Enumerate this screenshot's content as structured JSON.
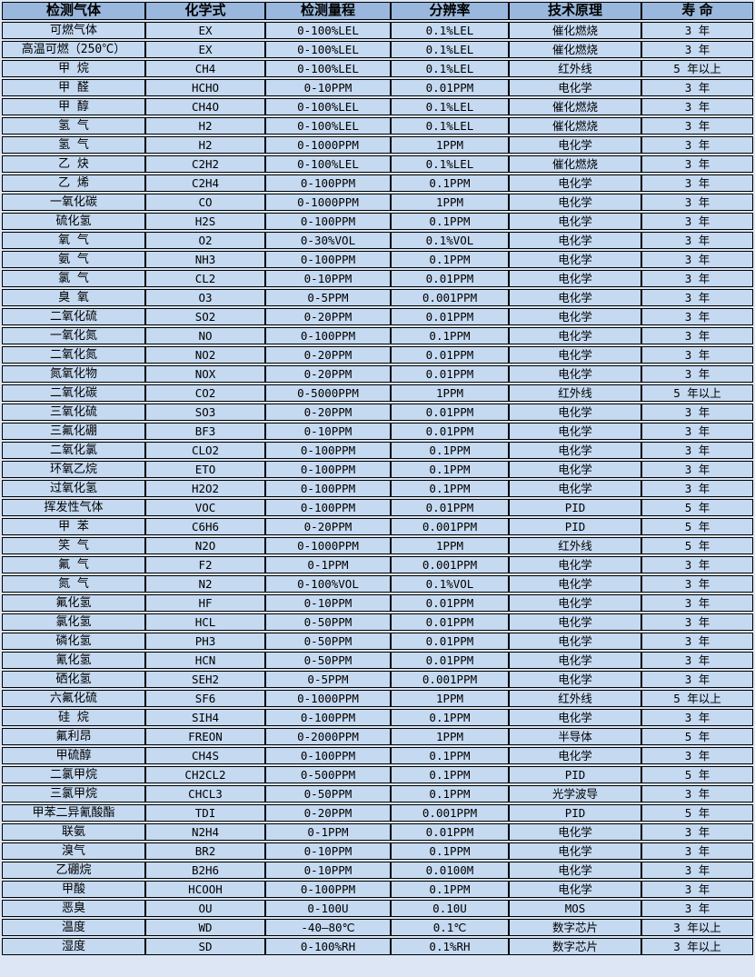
{
  "colors": {
    "header_bg": "#9ab8dd",
    "row_bg": "#c5d9f1",
    "gap_bg": "#dce6f4",
    "border": "#000000"
  },
  "chart_data": {
    "type": "table",
    "title": "",
    "columns": [
      "检测气体",
      "化学式",
      "检测量程",
      "分辨率",
      "技术原理",
      "寿 命"
    ],
    "column_keys": [
      "gas",
      "formula",
      "range",
      "resolution",
      "principle",
      "lifespan"
    ],
    "rows": [
      [
        "可燃气体",
        "EX",
        "0-100%LEL",
        "0.1%LEL",
        "催化燃烧",
        "3 年"
      ],
      [
        "高温可燃（250℃）",
        "EX",
        "0-100%LEL",
        "0.1%LEL",
        "催化燃烧",
        "3 年"
      ],
      [
        "甲 烷",
        "CH4",
        "0-100%LEL",
        "0.1%LEL",
        "红外线",
        "5 年以上"
      ],
      [
        "甲 醛",
        "HCHO",
        "0-10PPM",
        "0.01PPM",
        "电化学",
        "3 年"
      ],
      [
        "甲 醇",
        "CH4O",
        "0-100%LEL",
        "0.1%LEL",
        "催化燃烧",
        "3 年"
      ],
      [
        "氢 气",
        "H2",
        "0-100%LEL",
        "0.1%LEL",
        "催化燃烧",
        "3 年"
      ],
      [
        "氢 气",
        "H2",
        "0-1000PPM",
        "1PPM",
        "电化学",
        "3 年"
      ],
      [
        "乙 炔",
        "C2H2",
        "0-100%LEL",
        "0.1%LEL",
        "催化燃烧",
        "3 年"
      ],
      [
        "乙 烯",
        "C2H4",
        "0-100PPM",
        "0.1PPM",
        "电化学",
        "3 年"
      ],
      [
        "一氧化碳",
        "CO",
        "0-1000PPM",
        "1PPM",
        "电化学",
        "3 年"
      ],
      [
        "硫化氢",
        "H2S",
        "0-100PPM",
        "0.1PPM",
        "电化学",
        "3 年"
      ],
      [
        "氧 气",
        "O2",
        "0-30%VOL",
        "0.1%VOL",
        "电化学",
        "3 年"
      ],
      [
        "氨 气",
        "NH3",
        "0-100PPM",
        "0.1PPM",
        "电化学",
        "3 年"
      ],
      [
        "氯 气",
        "CL2",
        "0-10PPM",
        "0.01PPM",
        "电化学",
        "3 年"
      ],
      [
        "臭 氧",
        "O3",
        "0-5PPM",
        "0.001PPM",
        "电化学",
        "3 年"
      ],
      [
        "二氧化硫",
        "SO2",
        "0-20PPM",
        "0.01PPM",
        "电化学",
        "3 年"
      ],
      [
        "一氧化氮",
        "NO",
        "0-100PPM",
        "0.1PPM",
        "电化学",
        "3 年"
      ],
      [
        "二氧化氮",
        "NO2",
        "0-20PPM",
        "0.01PPM",
        "电化学",
        "3 年"
      ],
      [
        "氮氧化物",
        "NOX",
        "0-20PPM",
        "0.01PPM",
        "电化学",
        "3 年"
      ],
      [
        "二氧化碳",
        "CO2",
        "0-5000PPM",
        "1PPM",
        "红外线",
        "5 年以上"
      ],
      [
        "三氧化硫",
        "SO3",
        "0-20PPM",
        "0.01PPM",
        "电化学",
        "3 年"
      ],
      [
        "三氟化硼",
        "BF3",
        "0-10PPM",
        "0.01PPM",
        "电化学",
        "3 年"
      ],
      [
        "二氧化氯",
        "CLO2",
        "0-100PPM",
        "0.1PPM",
        "电化学",
        "3 年"
      ],
      [
        "环氧乙烷",
        "ETO",
        "0-100PPM",
        "0.1PPM",
        "电化学",
        "3 年"
      ],
      [
        "过氧化氢",
        "H2O2",
        "0-100PPM",
        "0.1PPM",
        "电化学",
        "3 年"
      ],
      [
        "挥发性气体",
        "VOC",
        "0-100PPM",
        "0.01PPM",
        "PID",
        "5 年"
      ],
      [
        "甲 苯",
        "C6H6",
        "0-20PPM",
        "0.001PPM",
        "PID",
        "5 年"
      ],
      [
        "笑 气",
        "N2O",
        "0-1000PPM",
        "1PPM",
        "红外线",
        "5 年"
      ],
      [
        "氟 气",
        "F2",
        "0-1PPM",
        "0.001PPM",
        "电化学",
        "3 年"
      ],
      [
        "氮 气",
        "N2",
        "0-100%VOL",
        "0.1%VOL",
        "电化学",
        "3 年"
      ],
      [
        "氟化氢",
        "HF",
        "0-10PPM",
        "0.01PPM",
        "电化学",
        "3 年"
      ],
      [
        "氯化氢",
        "HCL",
        "0-50PPM",
        "0.01PPM",
        "电化学",
        "3 年"
      ],
      [
        "磷化氢",
        "PH3",
        "0-50PPM",
        "0.01PPM",
        "电化学",
        "3 年"
      ],
      [
        "氰化氢",
        "HCN",
        "0-50PPM",
        "0.01PPM",
        "电化学",
        "3 年"
      ],
      [
        "硒化氢",
        "SEH2",
        "0-5PPM",
        "0.001PPM",
        "电化学",
        "3 年"
      ],
      [
        "六氟化硫",
        "SF6",
        "0-1000PPM",
        "1PPM",
        "红外线",
        "5 年以上"
      ],
      [
        "硅 烷",
        "SIH4",
        "0-100PPM",
        "0.1PPM",
        "电化学",
        "3 年"
      ],
      [
        "氟利昂",
        "FREON",
        "0-2000PPM",
        "1PPM",
        "半导体",
        "5 年"
      ],
      [
        "甲硫醇",
        "CH4S",
        "0-100PPM",
        "0.1PPM",
        "电化学",
        "3 年"
      ],
      [
        "二氯甲烷",
        "CH2CL2",
        "0-500PPM",
        "0.1PPM",
        "PID",
        "5 年"
      ],
      [
        "三氯甲烷",
        "CHCL3",
        "0-50PPM",
        "0.1PPM",
        "光学波导",
        "3 年"
      ],
      [
        "甲苯二异氰酸酯",
        "TDI",
        "0-20PPM",
        "0.001PPM",
        "PID",
        "5 年"
      ],
      [
        "联氨",
        "N2H4",
        "0-1PPM",
        "0.01PPM",
        "电化学",
        "3 年"
      ],
      [
        "溴气",
        "BR2",
        "0-10PPM",
        "0.1PPM",
        "电化学",
        "3 年"
      ],
      [
        "乙硼烷",
        "B2H6",
        "0-10PPM",
        "0.0100M",
        "电化学",
        "3 年"
      ],
      [
        "甲酸",
        "HCOOH",
        "0-100PPM",
        "0.1PPM",
        "电化学",
        "3 年"
      ],
      [
        "恶臭",
        "OU",
        "0-100U",
        "0.10U",
        "MOS",
        "3 年"
      ],
      [
        "温度",
        "WD",
        "-40—80℃",
        "0.1℃",
        "数字芯片",
        "3 年以上"
      ],
      [
        "湿度",
        "SD",
        "0-100%RH",
        "0.1%RH",
        "数字芯片",
        "3 年以上"
      ]
    ]
  }
}
